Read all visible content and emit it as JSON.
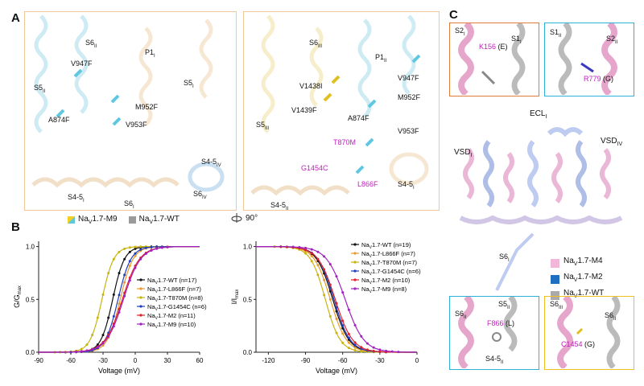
{
  "panels": {
    "A": "A",
    "B": "B",
    "C": "C"
  },
  "panelA": {
    "left_labels": [
      {
        "t": "S6",
        "s": "II"
      },
      {
        "t": "P1",
        "s": "I"
      },
      {
        "t": "V947F"
      },
      {
        "t": "S5",
        "s": "II"
      },
      {
        "t": "S5",
        "s": "I"
      },
      {
        "t": "M952F"
      },
      {
        "t": "A874F"
      },
      {
        "t": "V953F"
      },
      {
        "t": "S4-5",
        "s": "IV"
      },
      {
        "t": "S4-5",
        "s": "I"
      },
      {
        "t": "S6",
        "s": "I"
      },
      {
        "t": "S6",
        "s": "IV"
      }
    ],
    "right_labels": [
      {
        "t": "S6",
        "s": "III"
      },
      {
        "t": "P1",
        "s": "II"
      },
      {
        "t": "V1438I"
      },
      {
        "t": "V947F"
      },
      {
        "t": "V1439F"
      },
      {
        "t": "M952F"
      },
      {
        "t": "S5",
        "s": "III"
      },
      {
        "t": "A874F"
      },
      {
        "t": "V953F"
      },
      {
        "t": "T870M",
        "c": "magenta"
      },
      {
        "t": "G1454C",
        "c": "magenta"
      },
      {
        "t": "L866F",
        "c": "magenta"
      },
      {
        "t": "S4-5",
        "s": "I"
      },
      {
        "t": "S4-5",
        "s": "II"
      }
    ],
    "legend": [
      {
        "pre": "Na",
        "sub": "V",
        "post": "1.7-M9",
        "color": "#f5d020"
      },
      {
        "pre": "Na",
        "sub": "V",
        "post": "1.7-WT",
        "color": "#9a9a9a"
      }
    ],
    "rotation": "90°"
  },
  "charts": {
    "activation": {
      "ylabel": "G/G",
      "ylabel_sub": "max",
      "xlabel": "Voltage (mV)",
      "xticks": [
        "-90",
        "-60",
        "-30",
        "0",
        "30",
        "60"
      ],
      "yticks": [
        "0.0",
        "0.5",
        "1.0"
      ]
    },
    "inactivation": {
      "ylabel": "I/I",
      "ylabel_sub": "max",
      "xlabel": "Voltage (mV)",
      "xticks": [
        "-120",
        "-90",
        "-60",
        "-30",
        "0"
      ],
      "yticks": [
        "0.0",
        "0.5",
        "1.0"
      ]
    }
  },
  "chart_data": [
    {
      "type": "line",
      "xlabel": "Voltage (mV)",
      "ylabel": "G/Gmax",
      "xlim": [
        -90,
        60
      ],
      "ylim": [
        0,
        1.05
      ],
      "series": [
        {
          "name": "NaV1.7-WT (n=17)",
          "color": "#111111",
          "v_half": -21,
          "k": 5.5
        },
        {
          "name": "NaV1.7-L866F (n=7)",
          "color": "#e89a2c",
          "v_half": -14,
          "k": 6.0
        },
        {
          "name": "NaV1.7-T870M (n=8)",
          "color": "#c8b410",
          "v_half": -31,
          "k": 5.5
        },
        {
          "name": "NaV1.7-G1454C (n=6)",
          "color": "#1f3fbf",
          "v_half": -16,
          "k": 6.0
        },
        {
          "name": "NaV1.7-M2 (n=11)",
          "color": "#e0202a",
          "v_half": -12,
          "k": 8.0
        },
        {
          "name": "NaV1.7-M9 (n=10)",
          "color": "#a020c0",
          "v_half": -11,
          "k": 8.0
        }
      ]
    },
    {
      "type": "line",
      "xlabel": "Voltage (mV)",
      "ylabel": "I/Imax",
      "xlim": [
        -130,
        0
      ],
      "ylim": [
        0,
        1.05
      ],
      "series": [
        {
          "name": "NaV1.7-WT (n=19)",
          "color": "#111111",
          "v_half": -68,
          "k": 6.5
        },
        {
          "name": "NaV1.7-L866F (n=7)",
          "color": "#e89a2c",
          "v_half": -70,
          "k": 6.5
        },
        {
          "name": "NaV1.7-T870M (n=7)",
          "color": "#c8b410",
          "v_half": -74,
          "k": 6.0
        },
        {
          "name": "NaV1.7-G1454C (n=6)",
          "color": "#1f3fbf",
          "v_half": -67,
          "k": 6.5
        },
        {
          "name": "NaV1.7-M2 (n=10)",
          "color": "#e0202a",
          "v_half": -66,
          "k": 7.0
        },
        {
          "name": "NaV1.7-M9 (n=8)",
          "color": "#a020c0",
          "v_half": -58,
          "k": 7.5
        }
      ]
    }
  ],
  "panelC": {
    "topleft": {
      "l1": {
        "t": "S2",
        "s": "I"
      },
      "l2": {
        "t": "S1",
        "s": "I"
      },
      "res": "K156",
      "orig": "(E)"
    },
    "topright": {
      "l1": {
        "t": "S1",
        "s": "II"
      },
      "l2": {
        "t": "S2",
        "s": "II"
      },
      "res": "R779",
      "orig": "(G)"
    },
    "structure": [
      {
        "t": "ECL",
        "s": "I"
      },
      {
        "t": "VSD",
        "s": "I"
      },
      {
        "t": "VSD",
        "s": "IV"
      },
      {
        "t": "S6",
        "s": "I"
      }
    ],
    "legend": [
      {
        "pre": "Na",
        "sub": "V",
        "post": "1.7-M4",
        "color": "#f2b6d8"
      },
      {
        "pre": "Na",
        "sub": "V",
        "post": "1.7-M2",
        "color": "#1f6fc0"
      },
      {
        "pre": "Na",
        "sub": "V",
        "post": "1.7-WT",
        "color": "#aaaaaa"
      }
    ],
    "botleft": {
      "l1": {
        "t": "S6",
        "s": "II"
      },
      "l2": {
        "t": "S5",
        "s": "II"
      },
      "l3": {
        "t": "S4-5",
        "s": "II"
      },
      "res": "F866",
      "orig": "(L)"
    },
    "botright": {
      "l1": {
        "t": "S6",
        "s": "III"
      },
      "l2": {
        "t": "S6",
        "s": "II"
      },
      "res": "C1454",
      "orig": "(G)"
    }
  }
}
